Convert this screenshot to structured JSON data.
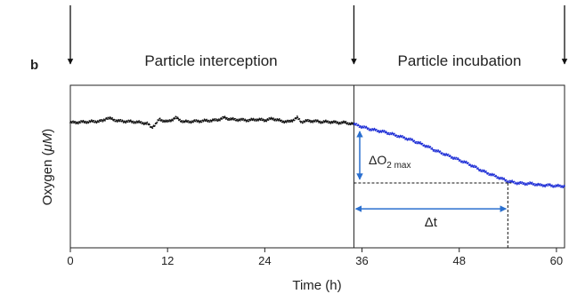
{
  "panel_label": "b",
  "phase_labels": [
    "Particle interception",
    "Particle incubation"
  ],
  "chart_data": {
    "type": "scatter",
    "xlabel": "Time (h)",
    "ylabel": "Oxygen (",
    "ylabel_unit": "μM",
    "ylabel_close": ")",
    "xlim": [
      0,
      61
    ],
    "ylim": [
      0,
      1
    ],
    "xticks": [
      0,
      12,
      24,
      36,
      48,
      60
    ],
    "yticks": [],
    "grid": false,
    "phase_boundaries": [
      0,
      35,
      61
    ],
    "series": [
      {
        "color": "#111111",
        "points": [
          [
            0,
            0.77
          ],
          [
            2,
            0.775
          ],
          [
            4,
            0.78
          ],
          [
            4.5,
            0.8
          ],
          [
            6,
            0.78
          ],
          [
            8,
            0.775
          ],
          [
            9.5,
            0.765
          ],
          [
            10,
            0.74
          ],
          [
            10.5,
            0.76
          ],
          [
            11,
            0.79
          ],
          [
            12,
            0.775
          ],
          [
            13,
            0.8
          ],
          [
            14,
            0.775
          ],
          [
            16,
            0.78
          ],
          [
            18,
            0.785
          ],
          [
            19,
            0.8
          ],
          [
            20,
            0.79
          ],
          [
            22,
            0.785
          ],
          [
            23,
            0.79
          ],
          [
            24,
            0.785
          ],
          [
            25,
            0.795
          ],
          [
            26,
            0.78
          ],
          [
            27,
            0.775
          ],
          [
            28,
            0.8
          ],
          [
            28.5,
            0.775
          ],
          [
            29,
            0.78
          ],
          [
            30,
            0.78
          ],
          [
            31,
            0.775
          ],
          [
            32,
            0.775
          ],
          [
            33,
            0.77
          ],
          [
            34,
            0.77
          ],
          [
            35,
            0.76
          ]
        ]
      },
      {
        "color": "#1f2fd6",
        "points": [
          [
            35,
            0.76
          ],
          [
            36,
            0.745
          ],
          [
            37,
            0.73
          ],
          [
            38,
            0.72
          ],
          [
            39,
            0.71
          ],
          [
            40,
            0.695
          ],
          [
            41,
            0.68
          ],
          [
            42,
            0.665
          ],
          [
            43,
            0.645
          ],
          [
            44,
            0.625
          ],
          [
            45,
            0.6
          ],
          [
            46,
            0.58
          ],
          [
            47,
            0.56
          ],
          [
            48,
            0.54
          ],
          [
            49,
            0.52
          ],
          [
            50,
            0.495
          ],
          [
            51,
            0.47
          ],
          [
            52,
            0.45
          ],
          [
            53,
            0.43
          ],
          [
            54,
            0.41
          ],
          [
            55,
            0.4
          ],
          [
            56,
            0.395
          ],
          [
            57,
            0.395
          ],
          [
            58,
            0.385
          ],
          [
            59,
            0.385
          ],
          [
            60,
            0.38
          ],
          [
            61,
            0.38
          ]
        ]
      }
    ],
    "annotations": {
      "delta_o2_main": "ΔO",
      "delta_o2_sub": "2 max",
      "delta_t": "Δt",
      "o2_arrow_x": 35.5,
      "o2_top": 0.76,
      "o2_bottom": 0.41,
      "dt_start": 35,
      "dt_end": 54,
      "dt_y": 0.24,
      "arrow_color": "#2a6fcf"
    }
  }
}
